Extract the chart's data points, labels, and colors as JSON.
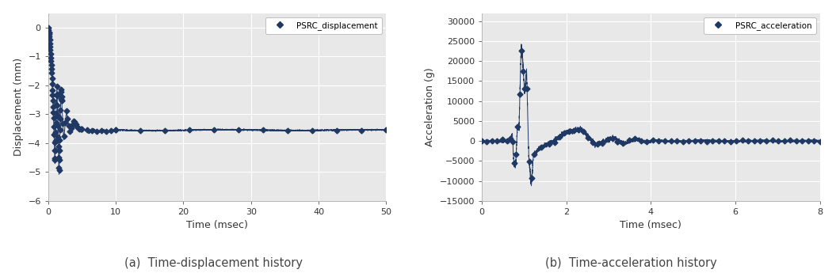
{
  "disp_xlabel": "Time (msec)",
  "disp_ylabel": "Displacement (mm)",
  "disp_legend": "PSRC_displacement",
  "disp_xlim": [
    0,
    50
  ],
  "disp_ylim": [
    -6,
    0.5
  ],
  "disp_xticks": [
    0,
    10,
    20,
    30,
    40,
    50
  ],
  "disp_yticks": [
    -6,
    -5,
    -4,
    -3,
    -2,
    -1,
    0
  ],
  "disp_caption": "(a)  Time-displacement history",
  "accel_xlabel": "Time (msec)",
  "accel_ylabel": "Acceleration (g)",
  "accel_legend": "PSRC_acceleration",
  "accel_xlim": [
    0,
    8
  ],
  "accel_ylim": [
    -15000,
    32000
  ],
  "accel_xticks": [
    0,
    2,
    4,
    6,
    8
  ],
  "accel_yticks": [
    -15000,
    -10000,
    -5000,
    0,
    5000,
    10000,
    15000,
    20000,
    25000,
    30000
  ],
  "accel_caption": "(b)  Time-acceleration history",
  "line_color": "#1f3864",
  "marker": "D",
  "markersize": 3.5,
  "linewidth": 0.7,
  "plot_bg_color": "#e8e8e8",
  "fig_bg_color": "#ffffff",
  "grid_color": "#ffffff",
  "figsize": [
    10.55,
    3.5
  ],
  "dpi": 100
}
